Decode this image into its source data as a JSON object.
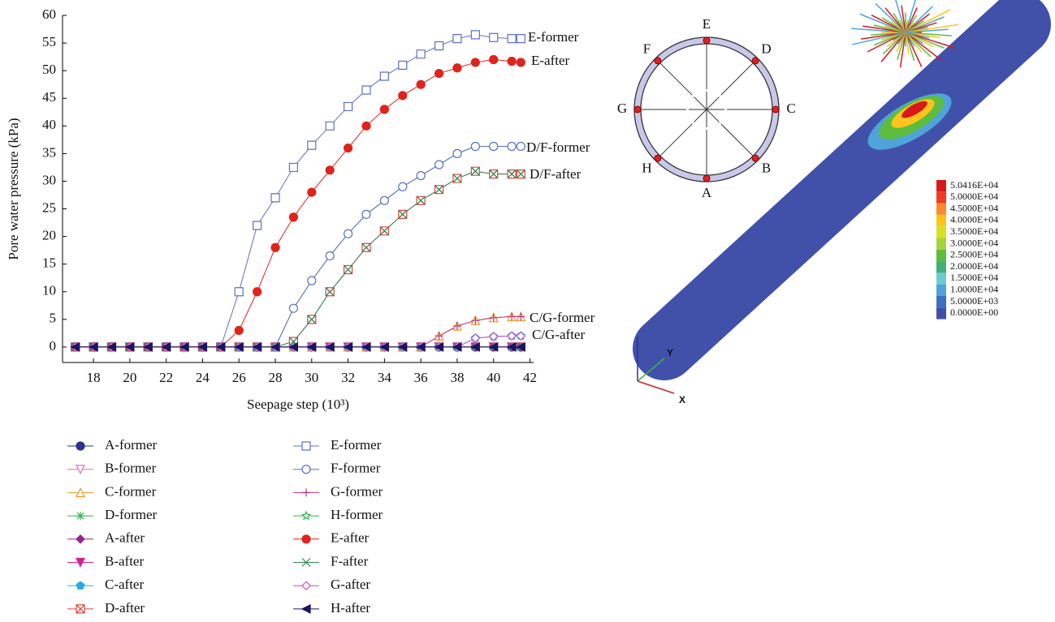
{
  "chart_data": {
    "type": "line",
    "x_label": "Seepage step (10³)",
    "y_label": "Pore water pressure (kPa)",
    "xlim": [
      16.3,
      42.2
    ],
    "ylim": [
      -2.8,
      60
    ],
    "xticks": [
      18,
      20,
      22,
      24,
      26,
      28,
      30,
      32,
      34,
      36,
      38,
      40,
      42
    ],
    "yticks": [
      0,
      5,
      10,
      15,
      20,
      25,
      30,
      35,
      40,
      45,
      50,
      55,
      60
    ],
    "x": [
      17,
      18,
      19,
      20,
      21,
      22,
      23,
      24,
      25,
      26,
      27,
      28,
      29,
      30,
      31,
      32,
      33,
      34,
      35,
      36,
      37,
      38,
      39,
      40,
      41,
      41.5
    ],
    "annotations": [
      "E-former",
      "E-after",
      "D/F-former",
      "D/F-after",
      "C/G-former",
      "C/G-after"
    ],
    "series": [
      {
        "name": "A-former",
        "color": "#2e3192",
        "marker": "circle",
        "filled": true,
        "values": [
          0,
          0,
          0,
          0,
          0,
          0,
          0,
          0,
          0,
          0,
          0,
          0,
          0,
          0,
          0,
          0,
          0,
          0,
          0,
          0,
          0,
          0,
          0,
          0,
          0,
          0
        ]
      },
      {
        "name": "B-former",
        "color": "#e86dad",
        "marker": "triangle-down",
        "filled": false,
        "values": [
          0,
          0,
          0,
          0,
          0,
          0,
          0,
          0,
          0,
          0,
          0,
          0,
          0,
          0,
          0,
          0,
          0,
          0,
          0,
          0,
          0,
          0,
          0,
          0,
          0,
          0
        ]
      },
      {
        "name": "C-former",
        "color": "#f7931e",
        "marker": "triangle-up",
        "filled": false,
        "values": [
          0,
          0,
          0,
          0,
          0,
          0,
          0,
          0,
          0,
          0,
          0,
          0,
          0,
          0,
          0,
          0,
          0,
          0,
          0,
          0,
          2,
          3.8,
          4.8,
          5.3,
          5.5,
          5.5
        ]
      },
      {
        "name": "D-former",
        "color": "#39b54a",
        "marker": "asterisk",
        "filled": false,
        "values": [
          0,
          0,
          0,
          0,
          0,
          0,
          0,
          0,
          0,
          0,
          0,
          0,
          7,
          12,
          16.5,
          20.5,
          24,
          26.5,
          29,
          31,
          33,
          35,
          36.3,
          36.3,
          36.3,
          36.3
        ]
      },
      {
        "name": "A-after",
        "color": "#92278f",
        "marker": "diamond",
        "filled": true,
        "values": [
          0,
          0,
          0,
          0,
          0,
          0,
          0,
          0,
          0,
          0,
          0,
          0,
          0,
          0,
          0,
          0,
          0,
          0,
          0,
          0,
          0,
          0,
          0,
          0,
          0,
          0
        ]
      },
      {
        "name": "B-after",
        "color": "#d6218d",
        "marker": "triangle-down",
        "filled": true,
        "values": [
          0,
          0,
          0,
          0,
          0,
          0,
          0,
          0,
          0,
          0,
          0,
          0,
          0,
          0,
          0,
          0,
          0,
          0,
          0,
          0,
          0,
          0,
          0,
          0,
          0,
          0
        ]
      },
      {
        "name": "C-after",
        "color": "#29abe2",
        "marker": "pentagon",
        "filled": true,
        "values": [
          0,
          0,
          0,
          0,
          0,
          0,
          0,
          0,
          0,
          0,
          0,
          0,
          0,
          0,
          0,
          0,
          0,
          0,
          0,
          0,
          0,
          0,
          1.6,
          1.9,
          2,
          2
        ]
      },
      {
        "name": "D-after",
        "color": "#e0443c",
        "marker": "box-x",
        "filled": false,
        "values": [
          0,
          0,
          0,
          0,
          0,
          0,
          0,
          0,
          0,
          0,
          0,
          0,
          1,
          5,
          10,
          14,
          18,
          21,
          24,
          26.5,
          28.5,
          30.5,
          31.8,
          31.3,
          31.3,
          31.3
        ]
      },
      {
        "name": "E-former",
        "color": "#5f6fc9",
        "marker": "square",
        "filled": false,
        "values": [
          0,
          0,
          0,
          0,
          0,
          0,
          0,
          0,
          0,
          10,
          22,
          27,
          32.5,
          36.5,
          40,
          43.5,
          46.5,
          49,
          51,
          53,
          54.5,
          55.8,
          56.5,
          56,
          55.8,
          55.8
        ]
      },
      {
        "name": "F-former",
        "color": "#5a6fc9",
        "marker": "circle",
        "filled": false,
        "values": [
          0,
          0,
          0,
          0,
          0,
          0,
          0,
          0,
          0,
          0,
          0,
          0,
          7,
          12,
          16.5,
          20.5,
          24,
          26.5,
          29,
          31,
          33,
          35,
          36.3,
          36.3,
          36.3,
          36.3
        ]
      },
      {
        "name": "G-former",
        "color": "#b8308d",
        "marker": "plus",
        "filled": false,
        "values": [
          0,
          0,
          0,
          0,
          0,
          0,
          0,
          0,
          0,
          0,
          0,
          0,
          0,
          0,
          0,
          0,
          0,
          0,
          0,
          0,
          2,
          3.8,
          4.8,
          5.3,
          5.5,
          5.5
        ]
      },
      {
        "name": "H-former",
        "color": "#39b54a",
        "marker": "star",
        "filled": false,
        "values": [
          0,
          0,
          0,
          0,
          0,
          0,
          0,
          0,
          0,
          0,
          0,
          0,
          0,
          0,
          0,
          0,
          0,
          0,
          0,
          0,
          0,
          0,
          0,
          0,
          0,
          0
        ]
      },
      {
        "name": "E-after",
        "color": "#e0231b",
        "marker": "circle",
        "filled": true,
        "values": [
          0,
          0,
          0,
          0,
          0,
          0,
          0,
          0,
          0,
          3,
          10,
          18,
          23.5,
          28,
          32,
          36,
          40,
          43,
          45.5,
          47.5,
          49.5,
          50.5,
          51.5,
          52,
          51.7,
          51.5
        ]
      },
      {
        "name": "F-after",
        "color": "#2e8b57",
        "marker": "x",
        "filled": false,
        "values": [
          0,
          0,
          0,
          0,
          0,
          0,
          0,
          0,
          0,
          0,
          0,
          0,
          1,
          5,
          10,
          14,
          18,
          21,
          24,
          26.5,
          28.5,
          30.5,
          31.8,
          31.3,
          31.3,
          31.3
        ]
      },
      {
        "name": "G-after",
        "color": "#c452c0",
        "marker": "diamond",
        "filled": false,
        "values": [
          0,
          0,
          0,
          0,
          0,
          0,
          0,
          0,
          0,
          0,
          0,
          0,
          0,
          0,
          0,
          0,
          0,
          0,
          0,
          0,
          0,
          0,
          1.6,
          1.9,
          2,
          2
        ]
      },
      {
        "name": "H-after",
        "color": "#1b1464",
        "marker": "triangle-left",
        "filled": true,
        "values": [
          0,
          0,
          0,
          0,
          0,
          0,
          0,
          0,
          0,
          0,
          0,
          0,
          0,
          0,
          0,
          0,
          0,
          0,
          0,
          0,
          0,
          0,
          0,
          0,
          0,
          0
        ]
      }
    ]
  },
  "diagram": {
    "labels": [
      "E",
      "D",
      "C",
      "B",
      "A",
      "H",
      "G",
      "F"
    ]
  },
  "model": {
    "colorbar": {
      "labels": [
        "5.0416E+04",
        "5.0000E+04",
        "4.5000E+04",
        "4.0000E+04",
        "3.5000E+04",
        "3.0000E+04",
        "2.5000E+04",
        "2.0000E+04",
        "1.5000E+04",
        "1.0000E+04",
        "5.0000E+03",
        "0.0000E+00"
      ],
      "colors": [
        "#d7191c",
        "#ee3b22",
        "#fb8b2c",
        "#fdc51c",
        "#d9e021",
        "#a6d33a",
        "#5cbd3e",
        "#41b07a",
        "#6ccbd0",
        "#4fa3d9",
        "#3d6fc2",
        "#3f4fa8"
      ]
    },
    "axes": [
      "X",
      "Y"
    ]
  }
}
